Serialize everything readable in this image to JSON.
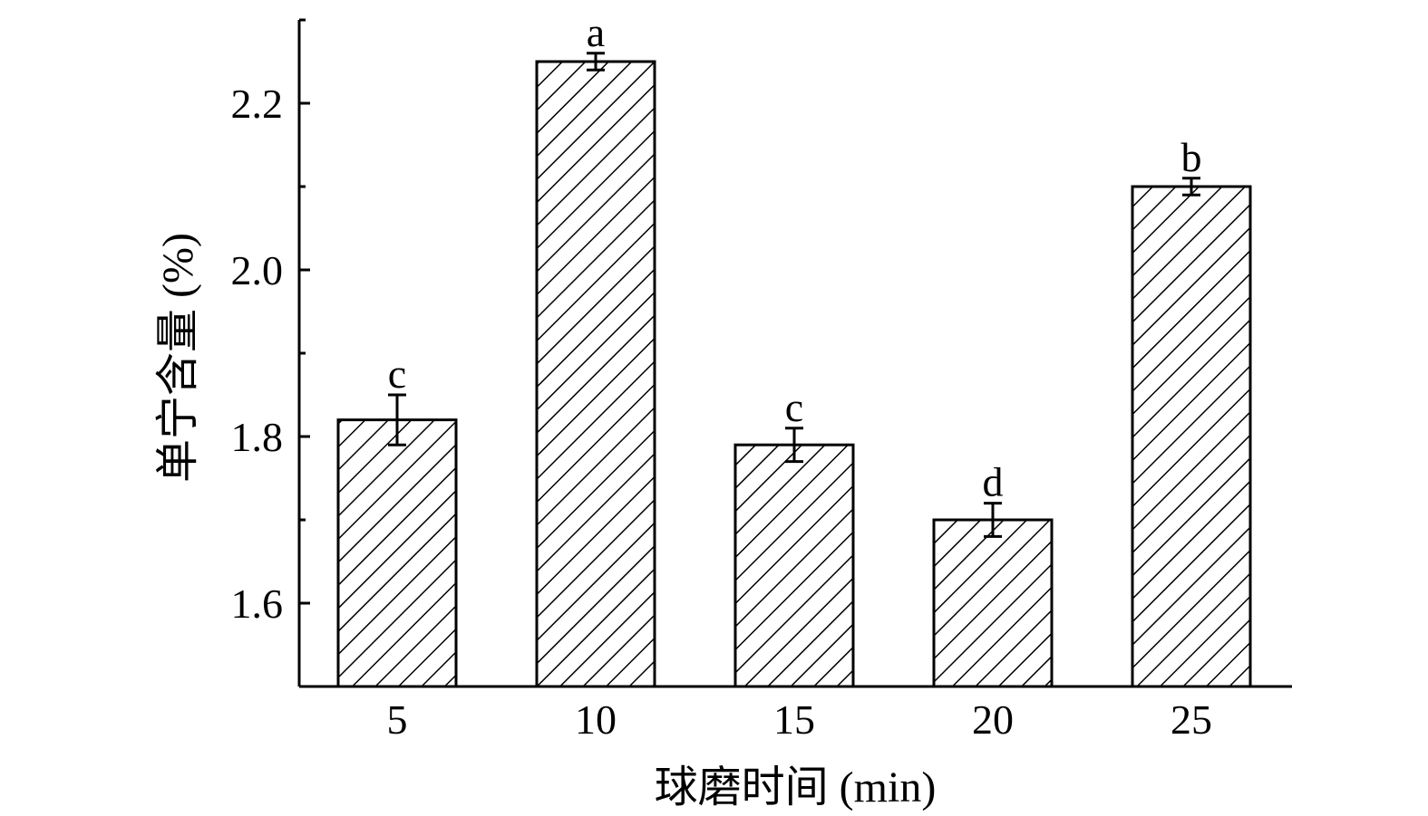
{
  "chart_data": {
    "type": "bar",
    "categories": [
      "5",
      "10",
      "15",
      "20",
      "25"
    ],
    "values": [
      1.82,
      2.25,
      1.79,
      1.7,
      2.1
    ],
    "errors": [
      0.03,
      0.01,
      0.02,
      0.02,
      0.01
    ],
    "significance_labels": [
      "c",
      "a",
      "c",
      "d",
      "b"
    ],
    "xlabel": "球磨时间 (min)",
    "ylabel": "单宁含量 (%)",
    "ylim": [
      1.5,
      2.3
    ],
    "yticks": [
      "1.6",
      "1.8",
      "2.0",
      "2.2"
    ],
    "ytick_values": [
      1.6,
      1.8,
      2.0,
      2.2
    ],
    "grid": false,
    "bar_fill": "diagonal-hatch",
    "colors": {
      "bar_stroke": "#000000",
      "hatch": "#000000",
      "background": "#ffffff"
    }
  }
}
